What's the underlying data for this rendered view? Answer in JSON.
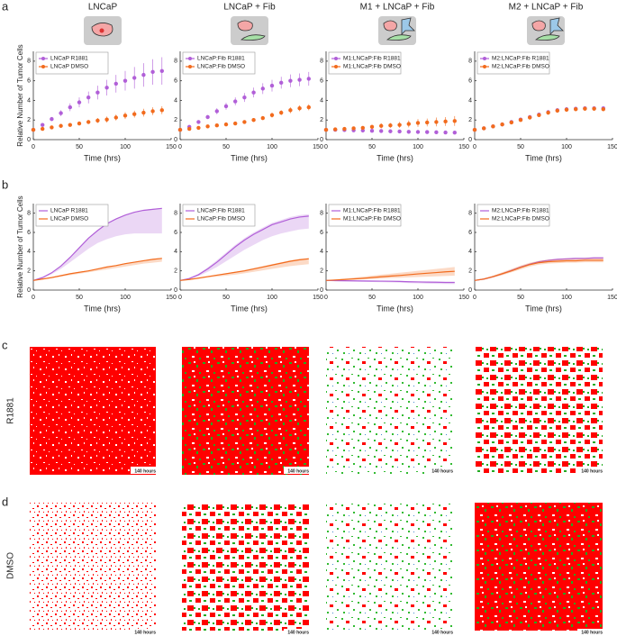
{
  "panel_labels": [
    "a",
    "b",
    "c",
    "d"
  ],
  "column_titles": [
    "LNCaP",
    "LNCaP + Fib",
    "M1 + LNCaP + Fib",
    "M2 + LNCaP + Fib"
  ],
  "row_labels": [
    "R1881",
    "DMSO"
  ],
  "timestamp": "140 hours",
  "chart_data": [
    {
      "type": "scatter",
      "xlabel": "Time (hrs)",
      "ylabel": "Relative Number of Tumor Cells",
      "legend": "upper left",
      "x": [
        0,
        10,
        20,
        30,
        40,
        50,
        60,
        70,
        80,
        90,
        100,
        110,
        120,
        130,
        140
      ],
      "xlim": [
        0,
        150
      ],
      "ylim": [
        0,
        9
      ],
      "xticks": [
        0,
        50,
        100,
        150
      ],
      "yticks": [
        0,
        2,
        4,
        6,
        8
      ],
      "series": [
        {
          "name": "LNCaP R1881",
          "color": "#b15fd8",
          "values": [
            1,
            1.5,
            2.1,
            2.7,
            3.3,
            3.8,
            4.3,
            4.8,
            5.3,
            5.7,
            6.0,
            6.3,
            6.6,
            6.9,
            7.0
          ],
          "errors": [
            0,
            0.1,
            0.2,
            0.3,
            0.4,
            0.5,
            0.6,
            0.7,
            0.8,
            0.9,
            1.0,
            1.1,
            1.2,
            1.3,
            1.4
          ]
        },
        {
          "name": "LNCaP DMSO",
          "color": "#f26b1d",
          "values": [
            1,
            1.1,
            1.25,
            1.4,
            1.5,
            1.65,
            1.8,
            1.95,
            2.05,
            2.25,
            2.45,
            2.6,
            2.75,
            2.9,
            3.0
          ],
          "errors": [
            0,
            0.05,
            0.1,
            0.1,
            0.15,
            0.2,
            0.2,
            0.25,
            0.3,
            0.3,
            0.35,
            0.35,
            0.4,
            0.4,
            0.4
          ]
        }
      ]
    },
    {
      "type": "scatter",
      "xlabel": "Time (hrs)",
      "legend": "upper left",
      "x": [
        0,
        10,
        20,
        30,
        40,
        50,
        60,
        70,
        80,
        90,
        100,
        110,
        120,
        130,
        140
      ],
      "xlim": [
        0,
        150
      ],
      "ylim": [
        0,
        9
      ],
      "xticks": [
        0,
        50,
        100,
        150
      ],
      "yticks": [
        0,
        2,
        4,
        6,
        8
      ],
      "series": [
        {
          "name": "LNCaP:Fib R1881",
          "color": "#b15fd8",
          "values": [
            1,
            1.3,
            1.8,
            2.3,
            2.9,
            3.4,
            3.9,
            4.3,
            4.8,
            5.2,
            5.5,
            5.8,
            6.0,
            6.1,
            6.2
          ],
          "errors": [
            0,
            0.1,
            0.15,
            0.2,
            0.3,
            0.35,
            0.4,
            0.45,
            0.5,
            0.55,
            0.6,
            0.6,
            0.65,
            0.65,
            0.7
          ]
        },
        {
          "name": "LNCaP:Fib DMSO",
          "color": "#f26b1d",
          "values": [
            1,
            1.1,
            1.2,
            1.35,
            1.45,
            1.55,
            1.65,
            1.8,
            2.0,
            2.2,
            2.5,
            2.75,
            3.0,
            3.2,
            3.3
          ],
          "errors": [
            0,
            0.05,
            0.05,
            0.1,
            0.1,
            0.1,
            0.15,
            0.15,
            0.2,
            0.2,
            0.25,
            0.25,
            0.3,
            0.3,
            0.3
          ]
        }
      ]
    },
    {
      "type": "scatter",
      "xlabel": "Time (hrs)",
      "legend": "upper left",
      "x": [
        0,
        10,
        20,
        30,
        40,
        50,
        60,
        70,
        80,
        90,
        100,
        110,
        120,
        130,
        140
      ],
      "xlim": [
        0,
        150
      ],
      "ylim": [
        0,
        9
      ],
      "xticks": [
        0,
        50,
        100,
        150
      ],
      "yticks": [
        0,
        2,
        4,
        6,
        8
      ],
      "series": [
        {
          "name": "M1:LNCaP:Fib R1881",
          "color": "#b15fd8",
          "values": [
            1,
            1.0,
            0.98,
            0.95,
            0.93,
            0.9,
            0.88,
            0.85,
            0.83,
            0.8,
            0.78,
            0.77,
            0.75,
            0.73,
            0.72
          ],
          "errors": [
            0,
            0.03,
            0.03,
            0.04,
            0.04,
            0.05,
            0.05,
            0.05,
            0.05,
            0.05,
            0.05,
            0.05,
            0.05,
            0.05,
            0.05
          ]
        },
        {
          "name": "M1:LNCaP:Fib DMSO",
          "color": "#f26b1d",
          "values": [
            1,
            1.05,
            1.1,
            1.15,
            1.2,
            1.3,
            1.4,
            1.45,
            1.5,
            1.6,
            1.7,
            1.75,
            1.8,
            1.85,
            1.9
          ],
          "errors": [
            0,
            0.05,
            0.1,
            0.1,
            0.15,
            0.2,
            0.25,
            0.25,
            0.3,
            0.35,
            0.4,
            0.4,
            0.45,
            0.45,
            0.5
          ]
        }
      ]
    },
    {
      "type": "scatter",
      "xlabel": "Time (hrs)",
      "legend": "upper left",
      "x": [
        0,
        10,
        20,
        30,
        40,
        50,
        60,
        70,
        80,
        90,
        100,
        110,
        120,
        130,
        140
      ],
      "xlim": [
        0,
        150
      ],
      "ylim": [
        0,
        9
      ],
      "xticks": [
        0,
        50,
        100,
        150
      ],
      "yticks": [
        0,
        2,
        4,
        6,
        8
      ],
      "series": [
        {
          "name": "M2:LNCaP:Fib R1881",
          "color": "#b15fd8",
          "values": [
            1,
            1.15,
            1.35,
            1.55,
            1.8,
            2.05,
            2.3,
            2.55,
            2.8,
            3.0,
            3.1,
            3.15,
            3.2,
            3.2,
            3.2
          ],
          "errors": [
            0,
            0.05,
            0.05,
            0.1,
            0.1,
            0.1,
            0.15,
            0.15,
            0.2,
            0.2,
            0.2,
            0.2,
            0.2,
            0.2,
            0.2
          ]
        },
        {
          "name": "M2:LNCaP:Fib DMSO",
          "color": "#f26b1d",
          "values": [
            1,
            1.15,
            1.35,
            1.55,
            1.75,
            2.0,
            2.25,
            2.5,
            2.75,
            2.95,
            3.05,
            3.1,
            3.15,
            3.15,
            3.1
          ],
          "errors": [
            0,
            0.05,
            0.05,
            0.1,
            0.1,
            0.1,
            0.15,
            0.15,
            0.2,
            0.2,
            0.2,
            0.2,
            0.2,
            0.2,
            0.2
          ]
        }
      ]
    },
    {
      "type": "line",
      "xlabel": "Time (hrs)",
      "ylabel": "Relative Number of Tumor Cells",
      "legend": "upper left",
      "x": [
        0,
        10,
        20,
        30,
        40,
        50,
        60,
        70,
        80,
        90,
        100,
        110,
        120,
        130,
        140
      ],
      "xlim": [
        0,
        150
      ],
      "ylim": [
        0,
        9
      ],
      "xticks": [
        0,
        50,
        100,
        150
      ],
      "yticks": [
        0,
        2,
        4,
        6,
        8
      ],
      "series": [
        {
          "name": "LNCaP R1881",
          "color": "#b15fd8",
          "values": [
            1,
            1.3,
            1.8,
            2.5,
            3.4,
            4.4,
            5.4,
            6.2,
            6.9,
            7.4,
            7.8,
            8.1,
            8.3,
            8.4,
            8.5
          ],
          "lower": [
            1,
            1.25,
            1.65,
            2.2,
            2.9,
            3.6,
            4.3,
            4.9,
            5.3,
            5.6,
            5.8,
            5.9,
            5.9,
            5.9,
            5.9
          ],
          "upper": [
            1,
            1.35,
            1.85,
            2.55,
            3.45,
            4.45,
            5.45,
            6.25,
            6.95,
            7.45,
            7.85,
            8.15,
            8.35,
            8.45,
            8.55
          ]
        },
        {
          "name": "LNCaP DMSO",
          "color": "#f26b1d",
          "values": [
            1,
            1.15,
            1.3,
            1.5,
            1.7,
            1.85,
            2.0,
            2.2,
            2.4,
            2.55,
            2.75,
            2.9,
            3.05,
            3.2,
            3.3
          ],
          "lower": [
            1,
            1.1,
            1.25,
            1.4,
            1.55,
            1.7,
            1.85,
            2.0,
            2.15,
            2.3,
            2.45,
            2.6,
            2.75,
            2.85,
            2.95
          ],
          "upper": [
            1,
            1.2,
            1.35,
            1.55,
            1.75,
            1.9,
            2.05,
            2.25,
            2.45,
            2.6,
            2.8,
            2.95,
            3.1,
            3.25,
            3.35
          ]
        }
      ]
    },
    {
      "type": "line",
      "xlabel": "Time (hrs)",
      "legend": "upper left",
      "x": [
        0,
        10,
        20,
        30,
        40,
        50,
        60,
        70,
        80,
        90,
        100,
        110,
        120,
        130,
        140
      ],
      "xlim": [
        0,
        150
      ],
      "ylim": [
        0,
        9
      ],
      "xticks": [
        0,
        50,
        100,
        150
      ],
      "yticks": [
        0,
        2,
        4,
        6,
        8
      ],
      "series": [
        {
          "name": "LNCaP:Fib R1881",
          "color": "#b15fd8",
          "values": [
            1,
            1.2,
            1.6,
            2.2,
            2.9,
            3.7,
            4.5,
            5.2,
            5.8,
            6.3,
            6.8,
            7.1,
            7.4,
            7.6,
            7.7
          ],
          "lower": [
            1,
            1.15,
            1.45,
            1.9,
            2.4,
            3.0,
            3.6,
            4.2,
            4.7,
            5.2,
            5.6,
            5.9,
            6.1,
            6.3,
            6.4
          ],
          "upper": [
            1,
            1.25,
            1.7,
            2.35,
            3.1,
            3.9,
            4.7,
            5.4,
            6.0,
            6.5,
            7.0,
            7.3,
            7.6,
            7.8,
            7.9
          ]
        },
        {
          "name": "LNCaP:Fib DMSO",
          "color": "#f26b1d",
          "values": [
            1,
            1.1,
            1.25,
            1.4,
            1.55,
            1.7,
            1.85,
            2.0,
            2.2,
            2.4,
            2.6,
            2.8,
            3.0,
            3.15,
            3.25
          ],
          "lower": [
            1,
            1.05,
            1.15,
            1.3,
            1.4,
            1.5,
            1.6,
            1.75,
            1.9,
            2.05,
            2.2,
            2.35,
            2.5,
            2.6,
            2.7
          ],
          "upper": [
            1,
            1.15,
            1.3,
            1.45,
            1.6,
            1.75,
            1.9,
            2.1,
            2.3,
            2.5,
            2.7,
            2.9,
            3.1,
            3.25,
            3.35
          ]
        }
      ]
    },
    {
      "type": "line",
      "xlabel": "Time (hrs)",
      "legend": "upper left",
      "x": [
        0,
        10,
        20,
        30,
        40,
        50,
        60,
        70,
        80,
        90,
        100,
        110,
        120,
        130,
        140
      ],
      "xlim": [
        0,
        150
      ],
      "ylim": [
        0,
        9
      ],
      "xticks": [
        0,
        50,
        100,
        150
      ],
      "yticks": [
        0,
        2,
        4,
        6,
        8
      ],
      "series": [
        {
          "name": "M1:LNCaP:Fib R1881",
          "color": "#b15fd8",
          "values": [
            1,
            0.98,
            0.97,
            0.96,
            0.95,
            0.94,
            0.93,
            0.92,
            0.9,
            0.87,
            0.85,
            0.83,
            0.82,
            0.8,
            0.8
          ],
          "lower": [
            1,
            0.93,
            0.9,
            0.88,
            0.86,
            0.84,
            0.82,
            0.8,
            0.77,
            0.73,
            0.7,
            0.67,
            0.65,
            0.63,
            0.62
          ],
          "upper": [
            1,
            1.02,
            1.02,
            1.01,
            1.0,
            0.99,
            0.98,
            0.97,
            0.95,
            0.92,
            0.9,
            0.88,
            0.87,
            0.85,
            0.85
          ]
        },
        {
          "name": "M1:LNCaP:Fib DMSO",
          "color": "#f26b1d",
          "values": [
            1,
            1.05,
            1.1,
            1.16,
            1.22,
            1.3,
            1.38,
            1.45,
            1.52,
            1.6,
            1.68,
            1.75,
            1.82,
            1.9,
            1.95
          ],
          "lower": [
            1,
            1.02,
            1.05,
            1.08,
            1.12,
            1.16,
            1.2,
            1.25,
            1.28,
            1.32,
            1.36,
            1.4,
            1.43,
            1.46,
            1.5
          ],
          "upper": [
            1,
            1.1,
            1.2,
            1.3,
            1.4,
            1.5,
            1.6,
            1.7,
            1.8,
            1.9,
            2.0,
            2.1,
            2.2,
            2.3,
            2.4
          ]
        }
      ]
    },
    {
      "type": "line",
      "xlabel": "Time (hrs)",
      "legend": "upper left",
      "x": [
        0,
        10,
        20,
        30,
        40,
        50,
        60,
        70,
        80,
        90,
        100,
        110,
        120,
        130,
        140
      ],
      "xlim": [
        0,
        150
      ],
      "ylim": [
        0,
        9
      ],
      "xticks": [
        0,
        50,
        100,
        150
      ],
      "yticks": [
        0,
        2,
        4,
        6,
        8
      ],
      "series": [
        {
          "name": "M2:LNCaP:Fib R1881",
          "color": "#b15fd8",
          "values": [
            1,
            1.15,
            1.4,
            1.7,
            2.05,
            2.4,
            2.7,
            2.95,
            3.1,
            3.2,
            3.25,
            3.3,
            3.3,
            3.35,
            3.35
          ],
          "lower": [
            1,
            1.05,
            1.3,
            1.6,
            1.95,
            2.3,
            2.6,
            2.85,
            3.0,
            3.1,
            3.15,
            3.2,
            3.2,
            3.25,
            3.25
          ],
          "upper": [
            1,
            1.2,
            1.45,
            1.75,
            2.1,
            2.45,
            2.75,
            3.0,
            3.15,
            3.25,
            3.3,
            3.35,
            3.35,
            3.4,
            3.4
          ]
        },
        {
          "name": "M2:LNCaP:Fib DMSO",
          "color": "#f26b1d",
          "values": [
            1,
            1.15,
            1.4,
            1.7,
            2.0,
            2.35,
            2.65,
            2.85,
            2.95,
            3.0,
            3.05,
            3.05,
            3.1,
            3.1,
            3.1
          ],
          "lower": [
            1,
            1.1,
            1.3,
            1.55,
            1.85,
            2.15,
            2.45,
            2.65,
            2.75,
            2.8,
            2.85,
            2.85,
            2.9,
            2.9,
            2.9
          ],
          "upper": [
            1,
            1.2,
            1.5,
            1.85,
            2.2,
            2.55,
            2.85,
            3.05,
            3.15,
            3.2,
            3.25,
            3.25,
            3.3,
            3.3,
            3.3
          ]
        }
      ]
    }
  ]
}
